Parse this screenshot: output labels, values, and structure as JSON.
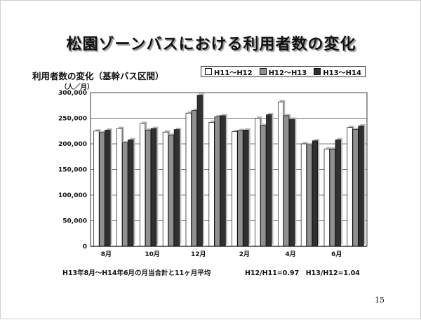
{
  "slide": {
    "title": "松園ゾーンバスにおける利用者数の変化",
    "page_number": "15"
  },
  "chart_data": {
    "type": "bar",
    "title": "利用者数の変化（基幹バス区間）",
    "ylabel": "（人／月）",
    "categories": [
      "8月",
      "9月",
      "10月",
      "11月",
      "12月",
      "1月",
      "2月",
      "3月",
      "4月",
      "5月",
      "6月",
      "7月"
    ],
    "x_tick_labels": [
      "8月",
      "",
      "10月",
      "",
      "12月",
      "",
      "2月",
      "",
      "4月",
      "",
      "6月",
      ""
    ],
    "y_tick_labels": [
      "0",
      "50,000",
      "100,000",
      "150,000",
      "200,000",
      "250,000",
      "300,000"
    ],
    "ylim": [
      0,
      300000
    ],
    "legend_position": "top-right",
    "grid": true,
    "series": [
      {
        "name": "H11～H12",
        "color": "#ffffff",
        "values": [
          225000,
          230000,
          240000,
          223000,
          260000,
          242000,
          224000,
          250000,
          282000,
          200000,
          190000,
          232000
        ]
      },
      {
        "name": "H12～H13",
        "color": "#909090",
        "values": [
          222000,
          202000,
          227000,
          217000,
          265000,
          253000,
          226000,
          236000,
          255000,
          198000,
          190000,
          228000
        ]
      },
      {
        "name": "H13～H14",
        "color": "#303030",
        "values": [
          227000,
          208000,
          230000,
          228000,
          295000,
          255000,
          227000,
          257000,
          248000,
          206000,
          208000,
          235000
        ]
      }
    ],
    "annotations": {
      "left": "H13年8月～H14年6月の月当合計と11ヶ月平均",
      "right": "H12/H11=0.97　H13/H12=1.04"
    }
  }
}
